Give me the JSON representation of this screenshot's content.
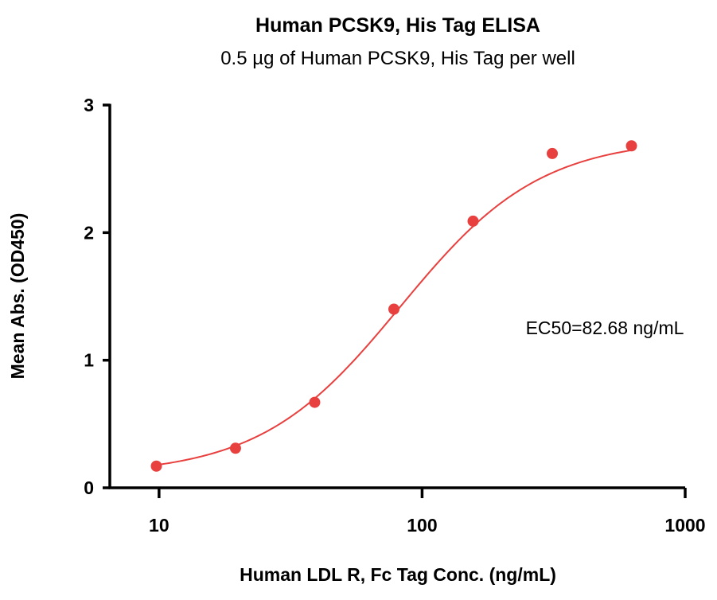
{
  "chart_data": {
    "type": "scatter",
    "title": "Human PCSK9, His Tag ELISA",
    "subtitle": "0.5 µg of Human PCSK9, His Tag per well",
    "xlabel": "Human LDL R, Fc Tag Conc. (ng/mL)",
    "ylabel": "Mean Abs. (OD450)",
    "x_scale": "log",
    "xlim": [
      6.5,
      1000
    ],
    "ylim": [
      0,
      3
    ],
    "x_ticks": [
      10,
      100,
      1000
    ],
    "x_tick_labels": [
      "10",
      "100",
      "1000"
    ],
    "y_ticks": [
      0,
      1,
      2,
      3
    ],
    "y_tick_labels": [
      "0",
      "1",
      "2",
      "3"
    ],
    "grid": false,
    "series": [
      {
        "name": "Human LDL R, Fc Tag",
        "color": "#e8403e",
        "x": [
          9.77,
          19.53,
          39.06,
          78.13,
          156.25,
          312.5,
          625
        ],
        "y": [
          0.17,
          0.31,
          0.67,
          1.4,
          2.09,
          2.62,
          2.68
        ]
      }
    ],
    "fit": {
      "model": "4PL",
      "bottom": 0.1,
      "top": 2.74,
      "ec50": 82.68,
      "hill": 1.63,
      "color": "#e8403e"
    },
    "annotations": [
      "EC50=82.68 ng/mL"
    ]
  }
}
